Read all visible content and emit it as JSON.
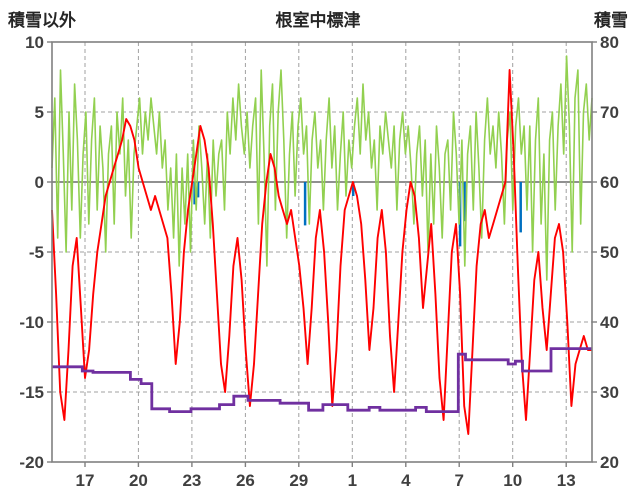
{
  "titles": {
    "left_axis_title": "積雪以外",
    "chart_title": "根室中標津",
    "right_axis_title": "積雪"
  },
  "chart_data": {
    "type": "line",
    "title": "根室中標津",
    "grid": {
      "color": "#a0a0a0",
      "zero_color": "#6b6b6b",
      "border_color": "#808080",
      "background": "#ffffff"
    },
    "left_axis": {
      "label": "積雪以外",
      "min": -20,
      "max": 10,
      "ticks": [
        10,
        5,
        0,
        -5,
        -10,
        -15,
        -20
      ]
    },
    "right_axis": {
      "label": "積雪",
      "min": 20,
      "max": 80,
      "ticks": [
        80,
        70,
        60,
        50,
        40,
        30,
        20
      ]
    },
    "x_axis": {
      "range": [
        0,
        30.3
      ],
      "tick_positions": [
        1.85,
        4.85,
        7.85,
        10.85,
        13.85,
        16.85,
        19.85,
        22.85,
        25.85,
        28.85
      ],
      "tick_labels": [
        "17",
        "20",
        "23",
        "26",
        "29",
        "1",
        "4",
        "7",
        "10",
        "13"
      ]
    },
    "series": [
      {
        "name": "blue-bars",
        "color": "#0070C0",
        "axis": "left",
        "width": 2.5,
        "bars": [
          [
            8.0,
            -1.6
          ],
          [
            8.2,
            -1.1
          ],
          [
            14.2,
            -3.1
          ],
          [
            16.9,
            -1.0
          ],
          [
            22.9,
            -4.6
          ],
          [
            23.15,
            -2.8
          ],
          [
            26.3,
            -3.6
          ]
        ]
      },
      {
        "name": "green-line",
        "color": "#92D050",
        "axis": "left",
        "width": 1.6,
        "values": [
          1,
          6,
          -4,
          8,
          2,
          -5,
          5,
          -2,
          7,
          3,
          -4,
          2,
          5,
          -3,
          3,
          6,
          -2,
          4,
          1,
          -5,
          2,
          4,
          -3,
          5,
          2,
          6,
          -1,
          3,
          -4,
          2,
          4,
          6,
          2,
          5,
          3,
          6,
          4,
          2,
          5,
          1,
          3,
          -2,
          1,
          -4,
          2,
          -6,
          1,
          -3,
          2,
          -5,
          3,
          -2,
          4,
          1,
          -3,
          2,
          -4,
          3,
          -1,
          2,
          3,
          -2,
          5,
          2,
          6,
          3,
          7,
          4,
          2,
          5,
          1,
          4,
          6,
          -3,
          8,
          2,
          -6,
          4,
          7,
          -2,
          5,
          8,
          3,
          -4,
          2,
          5,
          -1,
          4,
          6,
          2,
          4,
          -3,
          3,
          5,
          1,
          3,
          -2,
          3,
          6,
          1,
          4,
          -2,
          2,
          5,
          -1,
          3,
          1,
          4,
          6,
          2,
          7,
          3,
          5,
          1,
          3,
          -2,
          4,
          2,
          5,
          3,
          1,
          4,
          -2,
          3,
          5,
          2,
          4,
          1,
          -3,
          2,
          4,
          -1,
          3,
          -5,
          2,
          -3,
          4,
          1,
          -4,
          2,
          3,
          -2,
          5,
          2,
          -3,
          3,
          -6,
          2,
          4,
          -2,
          5,
          1,
          -4,
          3,
          6,
          2,
          4,
          1,
          5,
          2,
          -3,
          3,
          5,
          -2,
          4,
          6,
          2,
          4,
          -2,
          4,
          -5,
          3,
          6,
          -3,
          2,
          -7,
          3,
          5,
          -2,
          4,
          7,
          2,
          9,
          4,
          -5,
          6,
          8,
          -3,
          5,
          7,
          3,
          6
        ]
      },
      {
        "name": "red-line",
        "color": "#FF0000",
        "axis": "left",
        "width": 1.9,
        "values": [
          -2,
          -8,
          -15,
          -17,
          -12,
          -6,
          -4,
          -9,
          -14,
          -12,
          -8,
          -5,
          -3,
          -1,
          0,
          1,
          2,
          3,
          4.5,
          4,
          3,
          1,
          0,
          -1,
          -2,
          -1,
          -2,
          -3,
          -4,
          -8,
          -13,
          -10,
          -5,
          -2,
          0,
          2,
          4,
          3,
          1,
          -3,
          -8,
          -13,
          -15,
          -11,
          -6,
          -4,
          -7,
          -12,
          -16,
          -13,
          -8,
          -3,
          0,
          2,
          1,
          -1,
          -2,
          -3,
          -2,
          -4,
          -6,
          -9,
          -13,
          -9,
          -4,
          -2,
          -5,
          -10,
          -16,
          -12,
          -6,
          -2,
          -1,
          0,
          -1,
          -3,
          -7,
          -12,
          -9,
          -4,
          -2,
          -5,
          -11,
          -15,
          -10,
          -5,
          -2,
          0,
          -1,
          -4,
          -9,
          -6,
          -3,
          -8,
          -14,
          -17,
          -11,
          -5,
          -3,
          -8,
          -16,
          -18,
          -12,
          -6,
          -3,
          -2,
          -4,
          -3,
          -2,
          -1,
          0,
          8,
          2,
          -6,
          -13,
          -17,
          -12,
          -7,
          -5,
          -9,
          -12,
          -8,
          -4,
          -3,
          -5,
          -10,
          -16,
          -13,
          -12,
          -11,
          -12,
          -12
        ]
      },
      {
        "name": "purple-step-line",
        "color": "#7030A0",
        "axis": "right",
        "width": 2.8,
        "points": [
          [
            0,
            33.6
          ],
          [
            1.7,
            33.6
          ],
          [
            1.7,
            33.0
          ],
          [
            2.3,
            33.0
          ],
          [
            2.3,
            32.8
          ],
          [
            4.4,
            32.8
          ],
          [
            4.4,
            31.8
          ],
          [
            5.0,
            31.8
          ],
          [
            5.0,
            31.2
          ],
          [
            5.6,
            31.2
          ],
          [
            5.6,
            27.6
          ],
          [
            6.6,
            27.6
          ],
          [
            6.6,
            27.2
          ],
          [
            7.8,
            27.2
          ],
          [
            7.8,
            27.6
          ],
          [
            9.4,
            27.6
          ],
          [
            9.4,
            28.2
          ],
          [
            10.2,
            28.2
          ],
          [
            10.2,
            29.4
          ],
          [
            11.0,
            29.4
          ],
          [
            11.0,
            28.8
          ],
          [
            12.8,
            28.8
          ],
          [
            12.8,
            28.4
          ],
          [
            14.4,
            28.4
          ],
          [
            14.4,
            27.4
          ],
          [
            15.2,
            27.4
          ],
          [
            15.2,
            28.2
          ],
          [
            16.6,
            28.2
          ],
          [
            16.6,
            27.4
          ],
          [
            17.8,
            27.4
          ],
          [
            17.8,
            27.8
          ],
          [
            18.4,
            27.8
          ],
          [
            18.4,
            27.4
          ],
          [
            20.4,
            27.4
          ],
          [
            20.4,
            27.8
          ],
          [
            21.0,
            27.8
          ],
          [
            21.0,
            27.2
          ],
          [
            22.8,
            27.2
          ],
          [
            22.8,
            35.4
          ],
          [
            23.2,
            35.4
          ],
          [
            23.2,
            34.6
          ],
          [
            25.6,
            34.6
          ],
          [
            25.6,
            34.0
          ],
          [
            26.0,
            34.0
          ],
          [
            26.0,
            34.4
          ],
          [
            26.4,
            34.4
          ],
          [
            26.4,
            33.0
          ],
          [
            28.0,
            33.0
          ],
          [
            28.0,
            36.2
          ],
          [
            30.3,
            36.2
          ]
        ]
      }
    ]
  }
}
